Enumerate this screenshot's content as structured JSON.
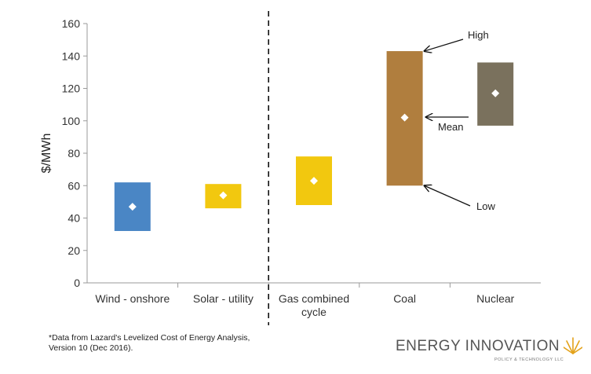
{
  "chart_data": {
    "type": "floating-bar",
    "ylabel": "$/MWh",
    "ylim": [
      0,
      160
    ],
    "yticks": [
      0,
      20,
      40,
      60,
      80,
      100,
      120,
      140,
      160
    ],
    "categories": [
      "Wind - onshore",
      "Solar - utility",
      "Gas combined cycle",
      "Coal",
      "Nuclear"
    ],
    "category_labels": [
      [
        "Wind - onshore"
      ],
      [
        "Solar - utility"
      ],
      [
        "Gas combined",
        "cycle"
      ],
      [
        "Coal"
      ],
      [
        "Nuclear"
      ]
    ],
    "low": [
      32,
      46,
      48,
      60,
      97
    ],
    "high": [
      62,
      61,
      78,
      143,
      136
    ],
    "mean": [
      47,
      54,
      63,
      102,
      117
    ],
    "colors": [
      "#4a86c5",
      "#f2c80f",
      "#f2c80f",
      "#b07e3e",
      "#7a715d"
    ],
    "divider_after_index": 1,
    "annotations": {
      "high": "High",
      "mean": "Mean",
      "low": "Low"
    },
    "grid": false
  },
  "footnote": "*Data from Lazard's Levelized Cost of Energy Analysis, Version 10 (Dec 2016).",
  "logo": {
    "main": "ENERGY INNOVATION",
    "sub": "POLICY & TECHNOLOGY LLC"
  }
}
